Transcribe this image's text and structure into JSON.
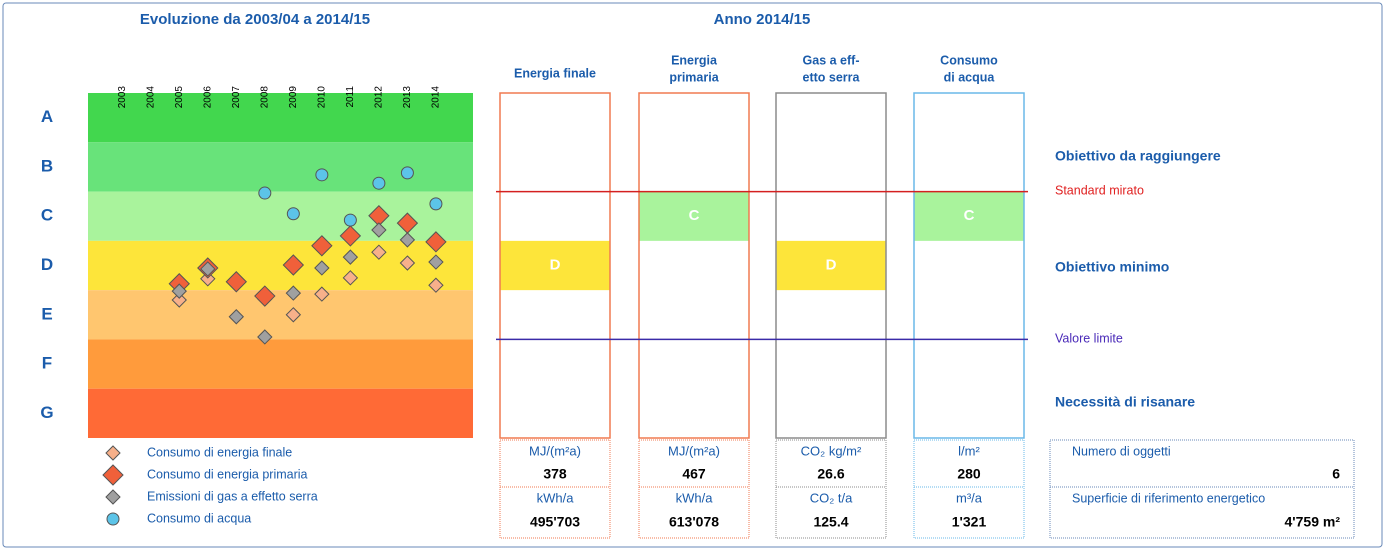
{
  "chart_data": {
    "type": "scatter",
    "title": "Evoluzione da 2003/04 a 2014/15",
    "x": [
      2003,
      2004,
      2005,
      2006,
      2007,
      2008,
      2009,
      2010,
      2011,
      2012,
      2013,
      2014
    ],
    "xlim": [
      2001.8,
      2015.3
    ],
    "ylim": [
      0,
      7
    ],
    "y_inverted": true,
    "classes": [
      {
        "label": "A",
        "color": "#42d74e"
      },
      {
        "label": "B",
        "color": "#68e37a"
      },
      {
        "label": "C",
        "color": "#a9f39c"
      },
      {
        "label": "D",
        "color": "#fde53a"
      },
      {
        "label": "E",
        "color": "#ffc66f"
      },
      {
        "label": "F",
        "color": "#ff9b3c"
      },
      {
        "label": "G",
        "color": "#ff6a36"
      }
    ],
    "series": [
      {
        "name": "Consumo di energia finale",
        "marker": "diamond",
        "size": 7,
        "color": "#f7b08a",
        "values": [
          null,
          null,
          4.2,
          3.77,
          3.87,
          4.18,
          4.5,
          4.08,
          3.75,
          3.23,
          3.45,
          3.9
        ]
      },
      {
        "name": "Consumo di energia primaria",
        "marker": "diamond",
        "size": 10,
        "color": "#f0603a",
        "values": [
          null,
          null,
          3.87,
          3.55,
          3.83,
          4.12,
          3.49,
          3.1,
          2.9,
          2.49,
          2.64,
          3.02
        ]
      },
      {
        "name": "Emissioni di gas a effetto serra",
        "marker": "diamond",
        "size": 7,
        "color": "#a0a0a0",
        "values": [
          null,
          null,
          4.02,
          3.57,
          4.54,
          4.95,
          4.06,
          3.55,
          3.33,
          2.78,
          2.98,
          3.43
        ]
      },
      {
        "name": "Consumo di acqua",
        "marker": "circle",
        "size": 6,
        "color": "#5cc4e8",
        "values": [
          null,
          null,
          null,
          null,
          null,
          2.03,
          2.45,
          1.66,
          2.58,
          1.83,
          1.62,
          2.25
        ]
      }
    ]
  },
  "year_panel": {
    "title": "Anno 2014/15",
    "columns": [
      {
        "header": [
          "Energia finale"
        ],
        "border": "#f07a50",
        "rating": "D",
        "unit1": "MJ/(m²a)",
        "value1": "378",
        "unit2": "kWh/a",
        "value2": "495'703"
      },
      {
        "header": [
          "Energia",
          "primaria"
        ],
        "border": "#f07a50",
        "rating": "C",
        "unit1": "MJ/(m²a)",
        "value1": "467",
        "unit2": "kWh/a",
        "value2": "613'078"
      },
      {
        "header": [
          "Gas a eff-",
          "etto serra"
        ],
        "border": "#8c8c8c",
        "rating": "D",
        "unit1": "CO₂ kg/m²",
        "value1": "26.6",
        "unit2": "CO₂ t/a",
        "value2": "125.4"
      },
      {
        "header": [
          "Consumo",
          "di acqua"
        ],
        "border": "#6ab8e8",
        "rating": "C",
        "unit1": "l/m²",
        "value1": "280",
        "unit2": "m³/a",
        "value2": "1'321"
      }
    ],
    "labels": {
      "target": "Obiettivo da raggiungere",
      "standard": "Standard mirato",
      "minimum": "Obiettivo minimo",
      "limit": "Valore limite",
      "renovate": "Necessità di risanare"
    },
    "summary": {
      "objects_label": "Numero di oggetti",
      "objects": "6",
      "area_label": "Superficie di riferimento energetico",
      "area": "4'759 m²"
    }
  }
}
